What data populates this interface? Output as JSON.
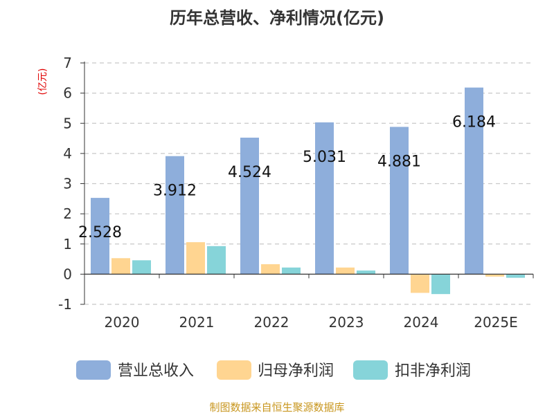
{
  "chart_data": {
    "type": "bar",
    "title": "历年总营收、净利情况(亿元)",
    "ylabel": "(亿元)",
    "categories": [
      "2020",
      "2021",
      "2022",
      "2023",
      "2024",
      "2025E"
    ],
    "ylim": [
      -1,
      7
    ],
    "yticks": [
      -1,
      0,
      1,
      2,
      3,
      4,
      5,
      6,
      7
    ],
    "grid": true,
    "legend_position": "bottom",
    "series": [
      {
        "name": "营业总收入",
        "color": "#8eaedb",
        "values": [
          2.528,
          3.912,
          4.524,
          5.031,
          4.881,
          6.184
        ],
        "labels": [
          "2.528",
          "3.912",
          "4.524",
          "5.031",
          "4.881",
          "6.184"
        ]
      },
      {
        "name": "归母净利润",
        "color": "#ffd591",
        "values": [
          0.53,
          1.06,
          0.33,
          0.22,
          -0.62,
          -0.08
        ]
      },
      {
        "name": "扣非净利润",
        "color": "#86d4d9",
        "values": [
          0.46,
          0.93,
          0.22,
          0.12,
          -0.66,
          -0.12
        ]
      }
    ]
  },
  "footer": {
    "source": "制图数据来自恒生聚源数据库"
  }
}
